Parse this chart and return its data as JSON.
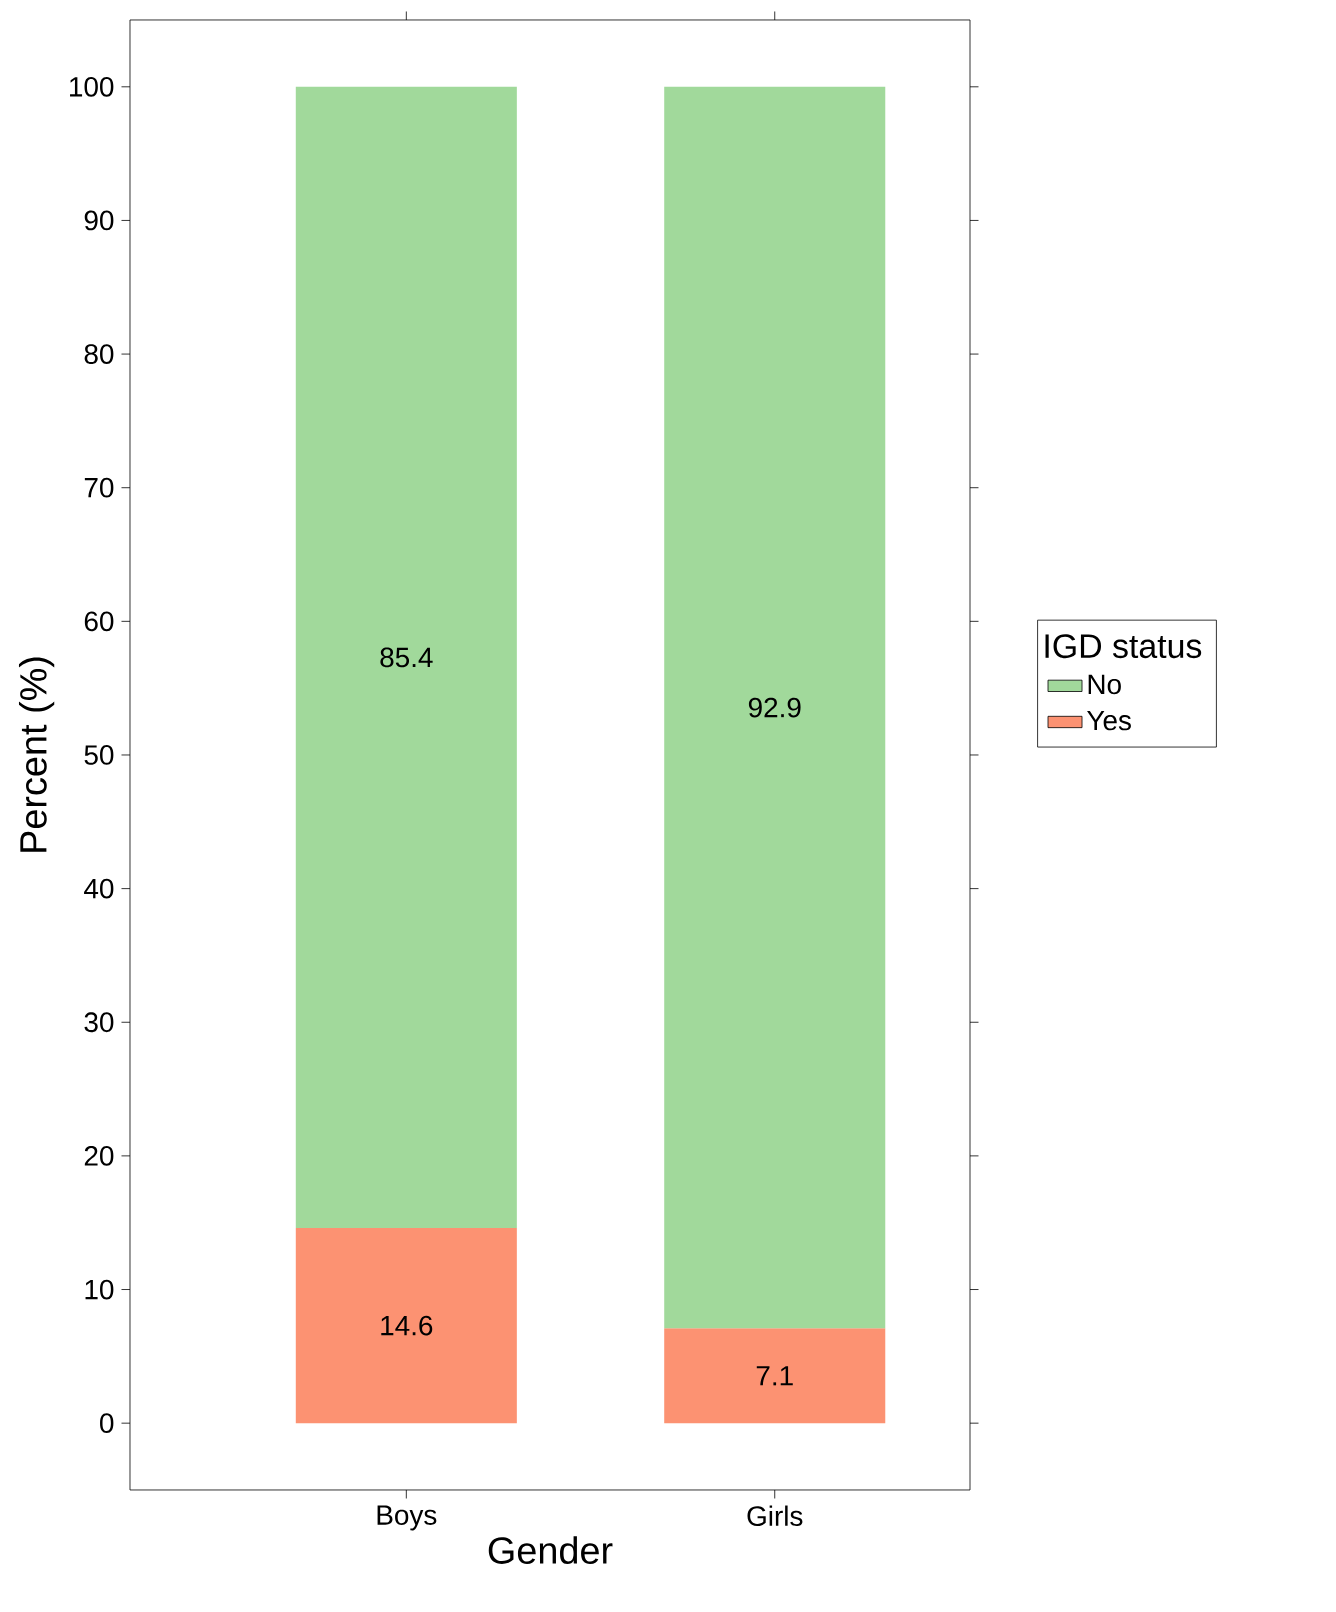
{
  "chart_data": {
    "type": "bar",
    "stacked": true,
    "xlabel": "Gender",
    "ylabel": "Percent (%)",
    "legend_title": "IGD status",
    "categories": [
      "Boys",
      "Girls"
    ],
    "series": [
      {
        "name": "Yes",
        "color": "#fc9272",
        "values": [
          14.6,
          7.1
        ]
      },
      {
        "name": "No",
        "color": "#a1d99b",
        "values": [
          85.4,
          92.9
        ]
      }
    ],
    "ylim": [
      -5,
      105
    ],
    "yticks": [
      0,
      10,
      20,
      30,
      40,
      50,
      60,
      70,
      80,
      90,
      100
    ],
    "data_labels": true,
    "legend": "right",
    "grid": false
  }
}
